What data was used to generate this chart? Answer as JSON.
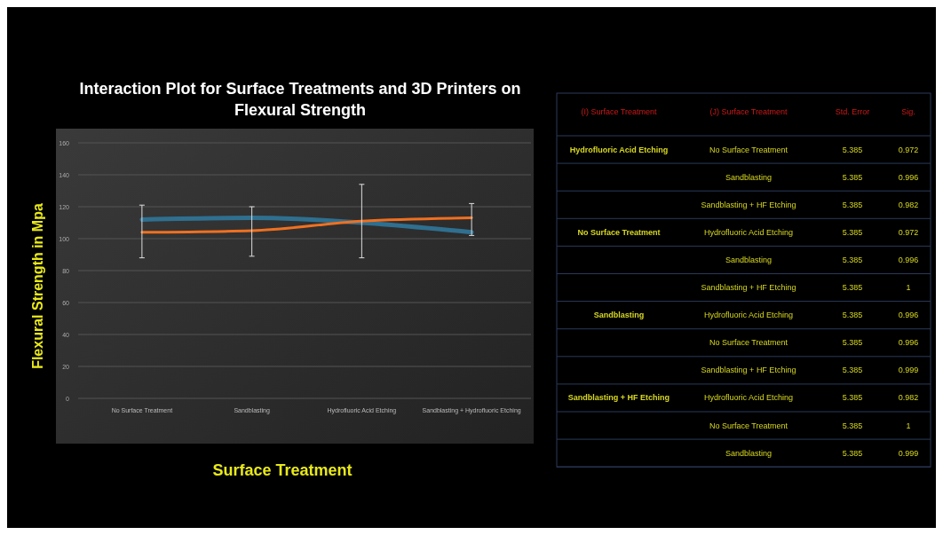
{
  "chart_data": [
    {
      "type": "line",
      "title": "Interaction Plot for Surface Treatments and 3D Printers on Flexural Strength",
      "xlabel": "Surface Treatment",
      "ylabel": "Flexural Strength in Mpa",
      "categories": [
        "No Surface Treatment",
        "Sandblasting",
        "Hydrofluoric Acid Etching",
        "Sandblasting + Hydrofluoric Etching"
      ],
      "series": [
        {
          "color": "#2f6f8f",
          "values": [
            112,
            113,
            110,
            104
          ]
        },
        {
          "color": "#f07020",
          "values": [
            104,
            105,
            111,
            113
          ],
          "errors": [
            [
              88,
              121
            ],
            [
              89,
              120
            ],
            [
              88,
              134
            ],
            [
              102,
              122
            ]
          ]
        }
      ],
      "ylim": [
        0,
        160
      ],
      "yticks": [
        0,
        20,
        40,
        60,
        80,
        100,
        120,
        140,
        160
      ],
      "grid": "y",
      "marker": "none",
      "line_style": "solid"
    },
    {
      "type": "other",
      "categories": [
        "(I) Surface Treatment",
        "(J) Surface Treatment",
        "Std. Error",
        "Sig."
      ],
      "annotations": [
        "Hydrofluoric Acid Etching",
        "No Surface Treatment",
        "5.385",
        "0.972",
        null,
        "Sandblasting",
        "5.385",
        "0.996",
        null,
        "Sandblasting + HF Etching",
        "5.385",
        "0.982",
        "No Surface Treatment",
        "Hydrofluoric Acid Etching",
        "5.385",
        "0.972",
        null,
        "Sandblasting",
        "5.385",
        "0.996",
        null,
        "Sandblasting + HF Etching",
        "5.385",
        "1",
        "Sandblasting",
        "Hydrofluoric Acid Etching",
        "5.385",
        "0.996",
        null,
        "No Surface Treatment",
        "5.385",
        "0.996",
        null,
        "Sandblasting + HF Etching",
        "5.385",
        "0.999",
        "Sandblasting + HF Etching",
        "Hydrofluoric Acid Etching",
        "5.385",
        "0.982",
        null,
        "No Surface Treatment",
        "5.385",
        "1",
        null,
        "Sandblasting",
        "5.385",
        "0.999"
      ]
    }
  ]
}
